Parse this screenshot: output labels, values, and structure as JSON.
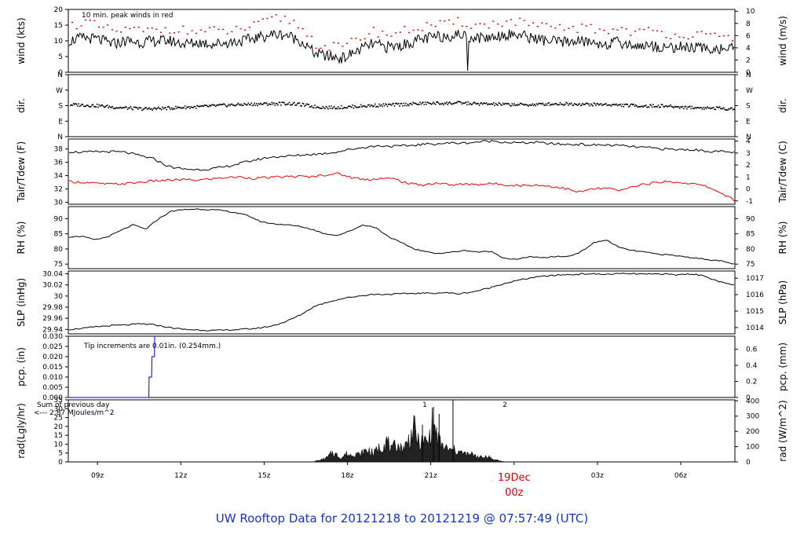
{
  "chart_data": {
    "type": "line",
    "title": "UW Rooftop Data for 20121218  to  20121219 @ 07:57:49  (UTC)",
    "time_axis": {
      "tick_labels": [
        "09z",
        "12z",
        "15z",
        "18z",
        "21z",
        "19Dec",
        "00z",
        "03z",
        "06z"
      ],
      "range_hours_utc": [
        7.95,
        31.95
      ]
    },
    "panels": [
      {
        "id": "wind",
        "ylabel_left": "wind (kts)",
        "ylabel_right": "wind (m/s)",
        "left_ticks": [
          0,
          5,
          10,
          15,
          20
        ],
        "right_ticks": [
          0,
          2,
          4,
          6,
          8,
          10
        ],
        "ylim": [
          0,
          20
        ],
        "annotation": "10 min. peak winds in red",
        "series": [
          {
            "role": "mean wind",
            "color": "#000000",
            "values": [
              10,
              11,
              10.5,
              9,
              10,
              9.5,
              10,
              10,
              9,
              9.5,
              9,
              9.5,
              10,
              11,
              12,
              12,
              10,
              6,
              5,
              4.5,
              7,
              9,
              8,
              8.5,
              10,
              11,
              11.5,
              12,
              11,
              11,
              12,
              12,
              11,
              10,
              9.5,
              10,
              9.5,
              9,
              9.5,
              8.5,
              8.5,
              8,
              8,
              8,
              7.5,
              7.5,
              7.5
            ]
          },
          {
            "role": "10 min peak",
            "color": "#dd0000",
            "values": [
              15,
              16,
              14,
              13,
              13.5,
              13,
              13.5,
              14,
              13,
              13,
              13,
              13,
              14,
              15,
              17,
              17,
              14,
              9,
              8,
              8,
              11,
              13,
              12,
              13,
              14,
              15,
              15,
              16,
              15,
              15,
              16,
              16,
              15,
              14,
              14,
              14,
              14,
              13,
              14,
              13,
              13,
              12.5,
              12,
              12,
              11.5,
              11,
              11
            ]
          }
        ]
      },
      {
        "id": "dir",
        "ylabel_left": "dir.",
        "ylabel_right": "dir.",
        "left_ticks": [
          "N",
          "E",
          "S",
          "W",
          "N"
        ],
        "right_ticks": [
          "N",
          "E",
          "S",
          "W",
          "N"
        ],
        "ylim": [
          0,
          360
        ],
        "series": [
          {
            "role": "direction (deg)",
            "color": "#000000",
            "values": [
              185,
              182,
              178,
              170,
              165,
              160,
              162,
              165,
              170,
              172,
              178,
              182,
              186,
              188,
              190,
              192,
              185,
              172,
              168,
              170,
              175,
              180,
              182,
              186,
              190,
              193,
              192,
              195,
              190,
              188,
              186,
              185,
              184,
              188,
              190,
              189,
              186,
              186,
              182,
              180,
              176,
              178,
              172,
              168,
              166,
              164,
              160
            ]
          }
        ]
      },
      {
        "id": "temp",
        "ylabel_left": "Tair/Tdew (F)",
        "ylabel_right": "Tair/Tdew (C)",
        "left_ticks": [
          30,
          32,
          34,
          36,
          38
        ],
        "right_ticks": [
          -1,
          0,
          1,
          2,
          3,
          4
        ],
        "ylim": [
          29.7,
          39.5
        ],
        "series": [
          {
            "role": "Tair",
            "color": "#000000",
            "values": [
              37.6,
              37.5,
              37.6,
              37.6,
              37.5,
              37,
              36.5,
              35.4,
              35,
              34.9,
              35,
              35.3,
              35.8,
              36.3,
              36.7,
              36.9,
              37,
              37.2,
              37.3,
              37.6,
              38,
              38.3,
              38.5,
              38.4,
              38.5,
              38.7,
              38.8,
              38.9,
              38.9,
              39.1,
              39.2,
              39,
              38.9,
              39,
              38.8,
              38.7,
              38.7,
              38.6,
              38.6,
              38.5,
              38.3,
              38.2,
              38,
              37.9,
              37.9,
              37.7,
              37.6,
              37.5
            ]
          },
          {
            "role": "Tdew",
            "color": "#ee0000",
            "values": [
              33.1,
              33,
              32.8,
              32.7,
              32.8,
              33,
              33.2,
              33.3,
              33.4,
              33.3,
              33.5,
              33.7,
              33.8,
              33.6,
              33.7,
              33.8,
              33.9,
              33.8,
              34.1,
              34.3,
              33.7,
              33.4,
              33.6,
              33.5,
              32.8,
              32.6,
              32.9,
              32.6,
              32.7,
              32.7,
              32.8,
              32.6,
              32.5,
              32.6,
              32.4,
              32.1,
              31.5,
              32,
              32.1,
              31.7,
              32.5,
              32.8,
              33.1,
              33,
              32.8,
              32.4,
              31.5,
              30.3
            ]
          }
        ]
      },
      {
        "id": "rh",
        "ylabel_left": "RH (%)",
        "ylabel_right": "RH (%)",
        "left_ticks": [
          75,
          80,
          85,
          90
        ],
        "right_ticks": [
          75,
          80,
          85,
          90
        ],
        "ylim": [
          73.5,
          94
        ],
        "series": [
          {
            "role": "RH",
            "color": "#000000",
            "values": [
              84,
              84.2,
              83,
              84,
              86,
              88,
              86.5,
              90,
              92.5,
              93,
              93.2,
              93,
              92.7,
              92,
              91,
              89,
              88.3,
              88,
              87.5,
              86.5,
              85,
              84.5,
              86,
              88,
              87,
              84,
              82,
              80,
              79,
              78.5,
              79,
              79.5,
              79,
              79.2,
              77,
              76.5,
              77.5,
              77,
              77.5,
              77.5,
              79,
              82,
              83,
              80.5,
              79.5,
              79,
              78.3,
              78,
              77.5,
              77,
              76.5,
              76,
              75
            ]
          }
        ]
      },
      {
        "id": "slp",
        "ylabel_left": "SLP (inHg)",
        "ylabel_right": "SLP (hPa)",
        "left_ticks": [
          29.94,
          29.96,
          29.98,
          30.0,
          30.02,
          30.04
        ],
        "right_ticks": [
          1014,
          1015,
          1016,
          1017
        ],
        "ylim": [
          29.932,
          30.045
        ],
        "series": [
          {
            "role": "SLP",
            "color": "#000000",
            "values": [
              29.94,
              29.942,
              29.945,
              29.947,
              29.948,
              29.95,
              29.948,
              29.943,
              29.94,
              29.939,
              29.938,
              29.939,
              29.94,
              29.942,
              29.946,
              29.954,
              29.966,
              29.982,
              29.99,
              29.996,
              30.0,
              30.003,
              30.003,
              30.004,
              30.005,
              30.005,
              30.006,
              30.004,
              30.008,
              30.014,
              30.022,
              30.028,
              30.033,
              30.036,
              30.038,
              30.039,
              30.04,
              30.039,
              30.04,
              30.04,
              30.039,
              30.04,
              30.038,
              30.04,
              30.036,
              30.025,
              30.02
            ]
          }
        ]
      },
      {
        "id": "pcp",
        "ylabel_left": "pcp. (in)",
        "ylabel_right": "pcp. (mm)",
        "left_ticks": [
          0.0,
          0.005,
          0.01,
          0.015,
          0.02,
          0.025,
          0.03
        ],
        "left_tick_labels": [
          "0.000",
          "0.005",
          "0.010",
          "0.015",
          "0.020",
          "0.025",
          "0.030"
        ],
        "right_ticks": [
          0,
          0.2,
          0.4,
          0.6
        ],
        "ylim": [
          0,
          0.03
        ],
        "annotation": "Tip increments are 0.01in. (0.254mm.)",
        "series": [
          {
            "role": "accumulated precip",
            "color": "#0000cc",
            "steps": [
              [
                7.95,
                0
              ],
              [
                10.85,
                0
              ],
              [
                10.86,
                0.01
              ],
              [
                10.95,
                0.01
              ],
              [
                10.96,
                0.02
              ],
              [
                11.05,
                0.02
              ],
              [
                11.06,
                0.03
              ],
              [
                11.1,
                0.03
              ]
            ]
          }
        ]
      },
      {
        "id": "rad",
        "ylabel_left": "rad(Lgly/hr)",
        "ylabel_right": "rad (W/m^2)",
        "left_ticks": [
          0,
          5,
          10,
          15,
          20,
          25,
          30,
          35
        ],
        "right_ticks": [
          0,
          100,
          200,
          300,
          400
        ],
        "ylim": [
          0,
          35
        ],
        "annotation": [
          "Sum of previous day",
          "<--- 2.87 MJoules/m^2"
        ],
        "day_markers": [
          "1",
          "2"
        ],
        "series": [
          {
            "role": "solar radiation",
            "color": "#000000",
            "values": [
              0.5,
              1,
              2,
              3.5,
              7,
              5,
              3,
              6,
              5,
              7,
              5,
              8,
              9,
              6,
              10,
              12,
              16,
              8,
              14,
              10,
              12,
              18,
              25,
              13,
              16,
              14,
              30,
              18,
              12,
              10,
              8,
              9,
              7,
              6,
              5,
              6,
              4,
              3,
              5,
              2,
              1.5,
              0.5,
              0
            ]
          }
        ]
      }
    ]
  }
}
